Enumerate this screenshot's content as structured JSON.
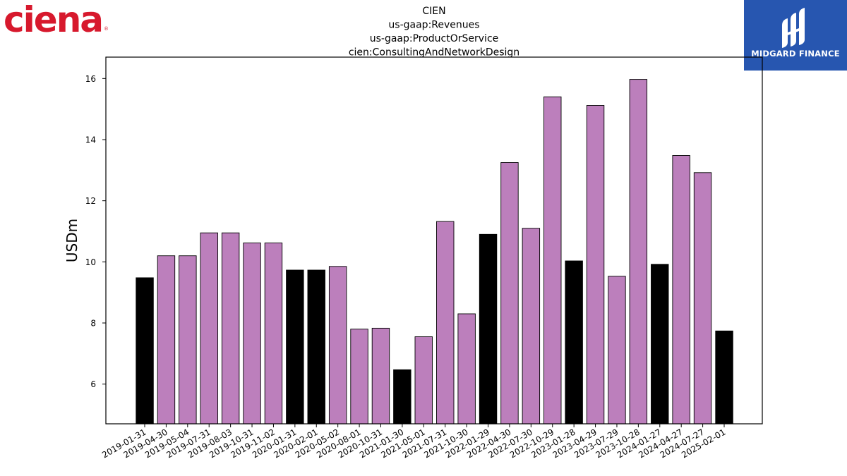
{
  "logos": {
    "ciena": "ciena",
    "midgard": "MIDGARD FINANCE"
  },
  "chart_data": {
    "type": "bar",
    "title_lines": [
      "CIEN",
      "us-gaap:Revenues",
      "us-gaap:ProductOrService",
      "cien:ConsultingAndNetworkDesign"
    ],
    "ylabel": "USDm",
    "xlabel": "",
    "ylim": [
      4.7,
      16.7
    ],
    "yticks": [
      6,
      8,
      10,
      12,
      14,
      16
    ],
    "grid": false,
    "categories": [
      "2019-01-31",
      "2019-04-30",
      "2019-05-04",
      "2019-07-31",
      "2019-08-03",
      "2019-10-31",
      "2019-11-02",
      "2020-01-31",
      "2020-02-01",
      "2020-05-02",
      "2020-08-01",
      "2020-10-31",
      "2021-01-30",
      "2021-05-01",
      "2021-07-31",
      "2021-10-30",
      "2022-01-29",
      "2022-04-30",
      "2022-07-30",
      "2022-10-29",
      "2023-01-28",
      "2023-04-29",
      "2023-07-29",
      "2023-10-28",
      "2024-01-27",
      "2024-04-27",
      "2024-07-27",
      "2025-02-01"
    ],
    "values": [
      9.48,
      10.2,
      10.2,
      10.95,
      10.95,
      10.62,
      10.62,
      9.73,
      9.73,
      9.85,
      7.8,
      7.83,
      6.47,
      7.55,
      11.32,
      8.3,
      10.9,
      13.25,
      11.1,
      15.4,
      10.03,
      15.12,
      9.53,
      15.97,
      9.92,
      13.48,
      12.92,
      7.74
    ],
    "bar_colors": [
      "#000000",
      "#bc7fbc",
      "#bc7fbc",
      "#bc7fbc",
      "#bc7fbc",
      "#bc7fbc",
      "#bc7fbc",
      "#000000",
      "#000000",
      "#bc7fbc",
      "#bc7fbc",
      "#bc7fbc",
      "#000000",
      "#bc7fbc",
      "#bc7fbc",
      "#bc7fbc",
      "#000000",
      "#bc7fbc",
      "#bc7fbc",
      "#bc7fbc",
      "#000000",
      "#bc7fbc",
      "#bc7fbc",
      "#bc7fbc",
      "#000000",
      "#bc7fbc",
      "#bc7fbc",
      "#000000"
    ]
  }
}
